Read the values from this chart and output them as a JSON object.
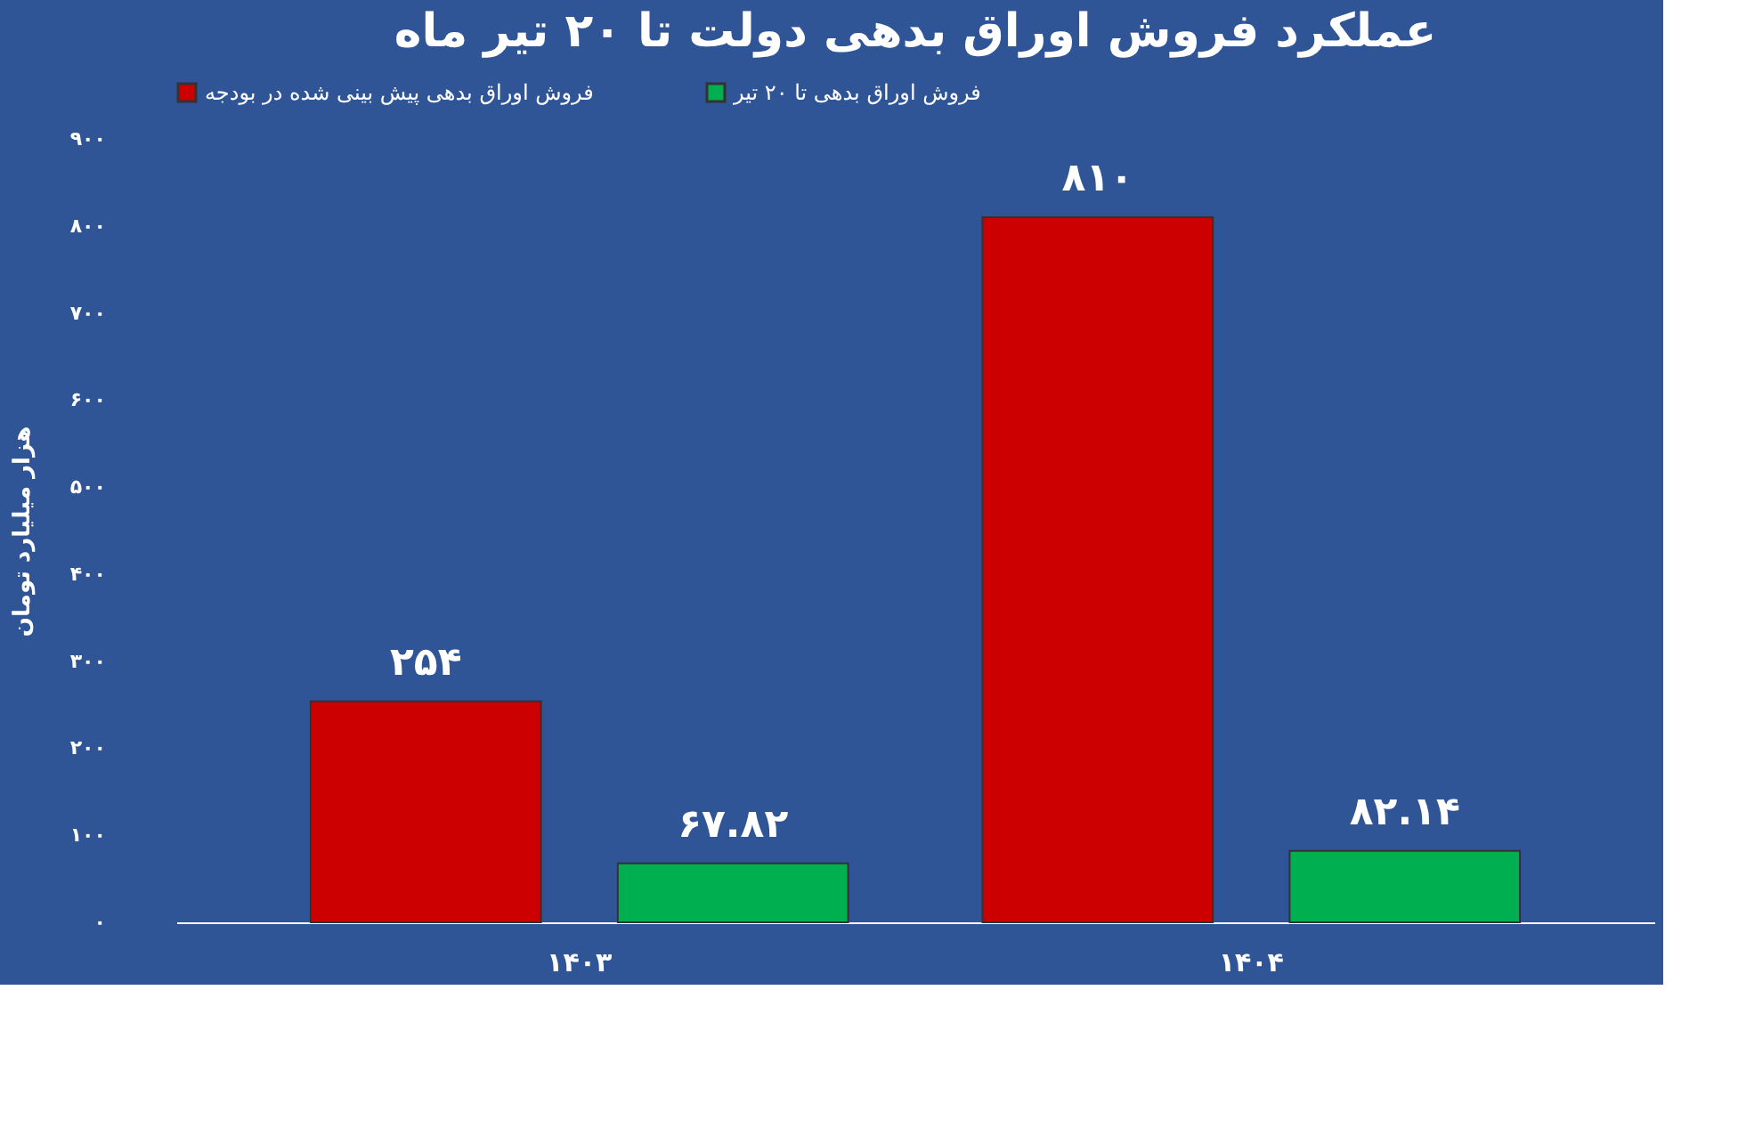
{
  "chart_data": {
    "type": "bar",
    "title": "عملکرد فروش اوراق بدهی دولت تا ۲۰ تیر ماه",
    "ylabel": "هزار میلیارد تومان",
    "categories": [
      "۱۴۰۳",
      "۱۴۰۴"
    ],
    "series": [
      {
        "name": "فروش اوراق بدهی پیش بینی شده در بودجه",
        "color": "#cc0000",
        "values": [
          254,
          810
        ],
        "value_labels": [
          "۲۵۴",
          "۸۱۰"
        ]
      },
      {
        "name": "فروش اوراق بدهی تا ۲۰ تیر",
        "color": "#00b050",
        "values": [
          67.82,
          82.14
        ],
        "value_labels": [
          "۶۷.۸۲",
          "۸۲.۱۴"
        ]
      }
    ],
    "ylim": [
      0,
      900
    ],
    "yticks": [
      {
        "value": 0,
        "label": "۰"
      },
      {
        "value": 100,
        "label": "۱۰۰"
      },
      {
        "value": 200,
        "label": "۲۰۰"
      },
      {
        "value": 300,
        "label": "۳۰۰"
      },
      {
        "value": 400,
        "label": "۴۰۰"
      },
      {
        "value": 500,
        "label": "۵۰۰"
      },
      {
        "value": 600,
        "label": "۶۰۰"
      },
      {
        "value": 700,
        "label": "۷۰۰"
      },
      {
        "value": 800,
        "label": "۸۰۰"
      },
      {
        "value": 900,
        "label": "۹۰۰"
      }
    ],
    "grid": false,
    "legend": "top"
  }
}
